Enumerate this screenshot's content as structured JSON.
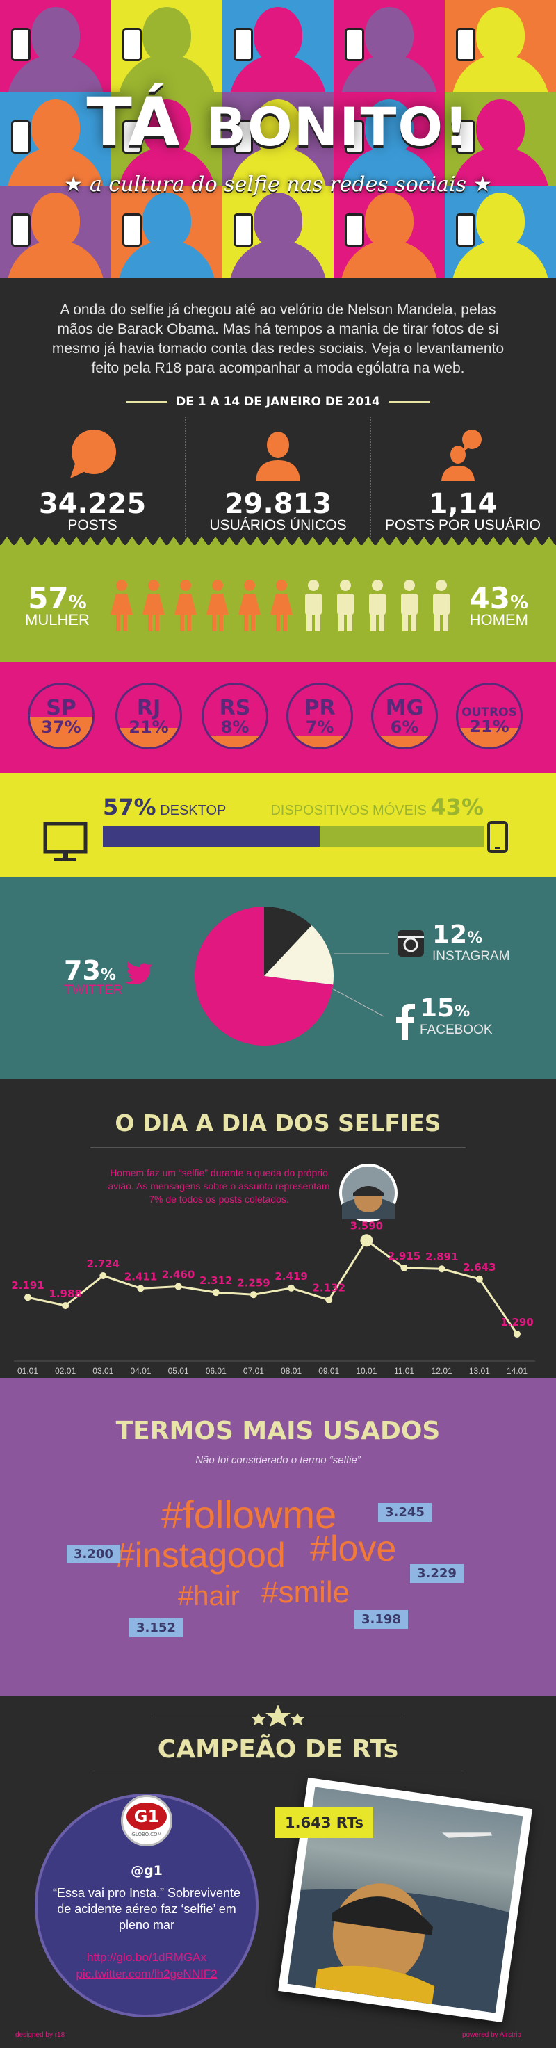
{
  "header": {
    "title_big": "TÁ",
    "title_word": "BONITO!",
    "subtitle": "a cultura do selfie nas redes sociais",
    "star": "★"
  },
  "intro": {
    "text": "A onda do selfie já chegou até ao velório de Nelson Mandela, pelas mãos de Barack Obama. Mas há tempos a mania de tirar fotos de si mesmo já havia tomado conta das redes sociais. Veja o levantamento feito pela R18 para acompanhar a moda ególatra na web.",
    "date_range": "DE 1 A 14 DE JANEIRO DE 2014"
  },
  "stats": [
    {
      "value": "34.225",
      "label": "POSTS",
      "icon": "speech-bubble-icon"
    },
    {
      "value": "29.813",
      "label": "USUÁRIOS ÚNICOS",
      "icon": "user-icon"
    },
    {
      "value": "1,14",
      "label": "POSTS POR USUÁRIO",
      "icon": "user-posts-icon"
    }
  ],
  "gender": {
    "female_pct": "57",
    "female_label": "MULHER",
    "male_pct": "43",
    "male_label": "HOMEM",
    "pct_sign": "%",
    "female_fraction": 0.57
  },
  "states": [
    {
      "code": "SP",
      "value": "37%",
      "fraction": 0.37
    },
    {
      "code": "RJ",
      "value": "21%",
      "fraction": 0.21
    },
    {
      "code": "RS",
      "value": "8%",
      "fraction": 0.08
    },
    {
      "code": "PR",
      "value": "7%",
      "fraction": 0.07
    },
    {
      "code": "MG",
      "value": "6%",
      "fraction": 0.06
    },
    {
      "code": "OUTROS",
      "value": "21%",
      "fraction": 0.21
    }
  ],
  "device": {
    "desktop_pct": "57",
    "desktop_label": "DESKTOP",
    "mobile_pct": "43",
    "mobile_label": "DISPOSITIVOS MÓVEIS",
    "pct_sign": "%",
    "desktop_fraction": 0.57
  },
  "social": {
    "twitter_pct": "73",
    "twitter_label": "TWITTER",
    "instagram_pct": "12",
    "instagram_label": "INSTAGRAM",
    "facebook_pct": "15",
    "facebook_label": "FACEBOOK",
    "pct_sign": "%",
    "colors": {
      "twitter": "#e0187f",
      "instagram": "#2b2b2b",
      "facebook": "#f7f4e0"
    }
  },
  "timeline": {
    "title": "O DIA A DIA DOS SELFIES",
    "annotation": "Homem faz um “selfie” durante a queda do próprio avião. As mensagens sobre o assunto representam 7% de todos os posts coletados."
  },
  "chart_data": {
    "type": "line",
    "categories": [
      "01.01",
      "02.01",
      "03.01",
      "04.01",
      "05.01",
      "06.01",
      "07.01",
      "08.01",
      "09.01",
      "10.01",
      "11.01",
      "12.01",
      "13.01",
      "14.01"
    ],
    "values": [
      2191,
      1988,
      2724,
      2411,
      2460,
      2312,
      2259,
      2419,
      2132,
      3590,
      2915,
      2891,
      2643,
      1290
    ],
    "value_labels": [
      "2.191",
      "1.988",
      "2.724",
      "2.411",
      "2.460",
      "2.312",
      "2.259",
      "2.419",
      "2.132",
      "3.590",
      "2.915",
      "2.891",
      "2.643",
      "1.290"
    ],
    "ylim": [
      1000,
      3800
    ],
    "grid": false,
    "title": "",
    "xlabel": "",
    "ylabel": ""
  },
  "terms": {
    "title": "TERMOS MAIS USADOS",
    "note": "Não foi considerado o termo “selfie”",
    "items": [
      {
        "term": "#followme",
        "count": "3.245"
      },
      {
        "term": "#instagood",
        "count": "3.200"
      },
      {
        "term": "#love",
        "count": "3.229"
      },
      {
        "term": "#hair",
        "count": "3.152"
      },
      {
        "term": "#smile",
        "count": "3.198"
      }
    ]
  },
  "rts": {
    "title": "CAMPEÃO DE RTs",
    "logo_text": "G1",
    "logo_sub": "GLOBO.COM",
    "handle": "@g1",
    "quote": "“Essa vai pro Insta.” Sobrevivente de acidente aéreo faz ‘selfie’ em pleno mar",
    "link1": "http://glo.bo/1dRMGAx",
    "link2": "pic.twitter.com/lh2geNNIF2",
    "count": "1.643 RTs"
  },
  "footer": {
    "left": "designed by r18",
    "right": "powered by Airstrip"
  }
}
